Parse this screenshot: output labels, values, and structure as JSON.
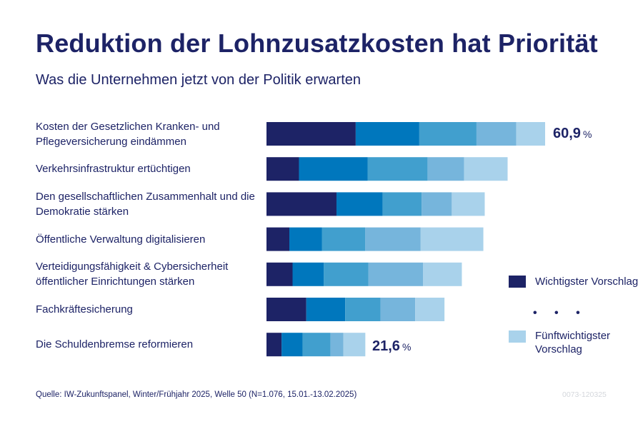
{
  "title": "Reduktion der Lohnzusatzkosten hat Priorität",
  "subtitle": "Was die Unternehmen jetzt von der Politik erwarten",
  "source": "Quelle: IW-Zukunftspanel, Winter/Frühjahr 2025, Welle 50 (N=1.076, 15.01.-13.02.2025)",
  "code": "0073-120325",
  "legend": {
    "first": "Wichtigster Vorschlag",
    "dots": "• • •",
    "last": "Fünftwichtigster Vorschlag"
  },
  "colors": [
    "#1d2366",
    "#0077bd",
    "#419fce",
    "#76b5dc",
    "#a9d2eb"
  ],
  "chart_data": {
    "type": "bar",
    "orientation": "horizontal",
    "stacked": true,
    "unit": "%",
    "categories": [
      "Kosten der Gesetzlichen Kranken- und Pflegeversicherung eindämmen",
      "Verkehrsinfrastruktur ertüchtigen",
      "Den gesellschaftlichen Zusammenhalt und die Demokratie stärken",
      "Öffentliche Verwaltung digitalisieren",
      "Verteidigungsfähigkeit & Cybersicherheit öffentlicher Einrichtungen stärken",
      "Fachkräftesicherung",
      "Die Schuldenbremse reformieren"
    ],
    "series": [
      {
        "name": "Wichtigster Vorschlag",
        "values": [
          19.5,
          7.1,
          15.3,
          5.0,
          5.7,
          8.7,
          3.3
        ]
      },
      {
        "name": "",
        "values": [
          13.9,
          15.0,
          10.1,
          7.1,
          6.8,
          8.5,
          4.6
        ]
      },
      {
        "name": "",
        "values": [
          12.5,
          13.1,
          8.5,
          9.5,
          9.8,
          7.7,
          6.1
        ]
      },
      {
        "name": "",
        "values": [
          8.7,
          8.0,
          6.6,
          12.1,
          11.9,
          7.6,
          2.8
        ]
      },
      {
        "name": "Fünftwichtigster Vorschlag",
        "values": [
          6.3,
          9.5,
          7.2,
          13.7,
          8.5,
          6.4,
          4.8
        ]
      }
    ],
    "totals_shown": [
      {
        "category": "Kosten der Gesetzlichen Kranken- und Pflegeversicherung eindämmen",
        "value": "60,9"
      },
      {
        "category": "Die Schuldenbremse reformieren",
        "value": "21,6"
      }
    ],
    "xlim": [
      0,
      60.9
    ],
    "legend_position": "right"
  }
}
